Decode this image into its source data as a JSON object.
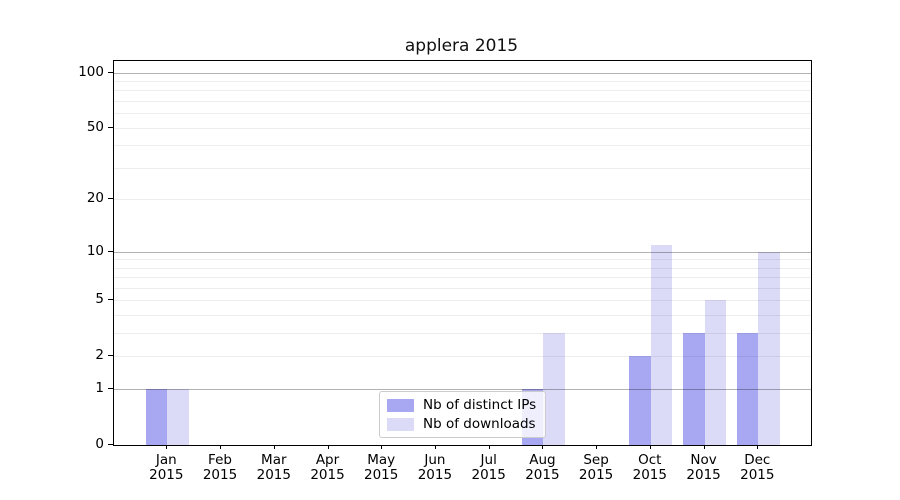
{
  "chart_data": {
    "type": "bar",
    "title": "applera 2015",
    "categories": [
      "Jan",
      "Feb",
      "Mar",
      "Apr",
      "May",
      "Jun",
      "Jul",
      "Aug",
      "Sep",
      "Oct",
      "Nov",
      "Dec"
    ],
    "x_year": "2015",
    "series": [
      {
        "name": "Nb of distinct IPs",
        "color": "#a8a8f2",
        "values": [
          1,
          0,
          0,
          0,
          0,
          0,
          0,
          1,
          0,
          2,
          3,
          3
        ]
      },
      {
        "name": "Nb of downloads",
        "color": "#dbdbf8",
        "values": [
          1,
          0,
          0,
          0,
          0,
          0,
          0,
          3,
          0,
          11,
          5,
          10
        ]
      }
    ],
    "xlabel": "",
    "ylabel": "",
    "yscale": "log1p",
    "ylim": [
      0,
      116
    ],
    "y_tick_labels": [
      "0",
      "1",
      "2",
      "5",
      "10",
      "20",
      "50",
      "100"
    ],
    "y_ticks": [
      0,
      1,
      2,
      5,
      10,
      20,
      50,
      100
    ],
    "grid_major": [
      1,
      10,
      100
    ],
    "grid_minor": [
      2,
      3,
      4,
      5,
      6,
      7,
      8,
      9,
      20,
      30,
      40,
      50,
      60,
      70,
      80,
      90
    ],
    "grid": "on",
    "legend_position": "lower center"
  }
}
